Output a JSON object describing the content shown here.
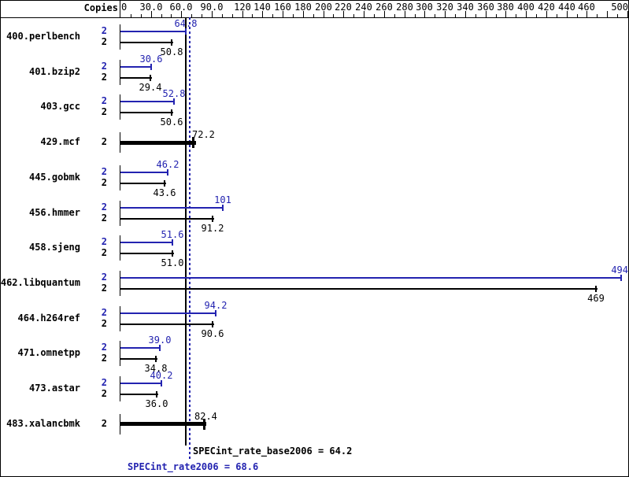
{
  "window": {
    "background": "#ffffff",
    "border_color": "#000000"
  },
  "header": {
    "copies_label": "Copies"
  },
  "palette": {
    "peak_blue": "#2323b0",
    "base_black": "#000000"
  },
  "chart_data": {
    "type": "bar",
    "orientation": "horizontal",
    "title": "",
    "xlabel": "",
    "ylabel": "",
    "axis": {
      "xlim": [
        0,
        500
      ],
      "minor_tick_step": 10,
      "ticks": [
        {
          "value": 0,
          "label": "0"
        },
        {
          "value": 30,
          "label": "30.0"
        },
        {
          "value": 60,
          "label": "60.0"
        },
        {
          "value": 90,
          "label": "90.0"
        },
        {
          "value": 120,
          "label": "120"
        },
        {
          "value": 140,
          "label": "140"
        },
        {
          "value": 160,
          "label": "160"
        },
        {
          "value": 180,
          "label": "180"
        },
        {
          "value": 200,
          "label": "200"
        },
        {
          "value": 220,
          "label": "220"
        },
        {
          "value": 240,
          "label": "240"
        },
        {
          "value": 260,
          "label": "260"
        },
        {
          "value": 280,
          "label": "280"
        },
        {
          "value": 300,
          "label": "300"
        },
        {
          "value": 320,
          "label": "320"
        },
        {
          "value": 340,
          "label": "340"
        },
        {
          "value": 360,
          "label": "360"
        },
        {
          "value": 380,
          "label": "380"
        },
        {
          "value": 400,
          "label": "400"
        },
        {
          "value": 420,
          "label": "420"
        },
        {
          "value": 440,
          "label": "440"
        },
        {
          "value": 460,
          "label": "460"
        },
        {
          "value": 480,
          "label": ""
        },
        {
          "value": 500,
          "label": "500"
        }
      ]
    },
    "legend": {
      "peak_series": "SPECint_rate2006 (peak, blue)",
      "base_series": "SPECint_rate_base2006 (base, black)"
    },
    "benchmarks": [
      {
        "name": "400.perlbench",
        "copies": "2",
        "peak": {
          "value": 64.8,
          "label": "64.8"
        },
        "base": {
          "value": 50.8,
          "label": "50.8"
        },
        "single": null
      },
      {
        "name": "401.bzip2",
        "copies": "2",
        "peak": {
          "value": 30.6,
          "label": "30.6"
        },
        "base": {
          "value": 29.4,
          "label": "29.4"
        },
        "single": null
      },
      {
        "name": "403.gcc",
        "copies": "2",
        "peak": {
          "value": 52.8,
          "label": "52.8"
        },
        "base": {
          "value": 50.6,
          "label": "50.6"
        },
        "single": null
      },
      {
        "name": "429.mcf",
        "copies": "2",
        "peak": null,
        "base": null,
        "single": {
          "value": 72.2,
          "label": "72.2"
        }
      },
      {
        "name": "445.gobmk",
        "copies": "2",
        "peak": {
          "value": 46.2,
          "label": "46.2"
        },
        "base": {
          "value": 43.6,
          "label": "43.6"
        },
        "single": null
      },
      {
        "name": "456.hmmer",
        "copies": "2",
        "peak": {
          "value": 101,
          "label": "101"
        },
        "base": {
          "value": 91.2,
          "label": "91.2"
        },
        "single": null
      },
      {
        "name": "458.sjeng",
        "copies": "2",
        "peak": {
          "value": 51.6,
          "label": "51.6"
        },
        "base": {
          "value": 51.0,
          "label": "51.0"
        },
        "single": null
      },
      {
        "name": "462.libquantum",
        "copies": "2",
        "peak": {
          "value": 494,
          "label": "494"
        },
        "base": {
          "value": 469,
          "label": "469"
        },
        "single": null
      },
      {
        "name": "464.h264ref",
        "copies": "2",
        "peak": {
          "value": 94.2,
          "label": "94.2"
        },
        "base": {
          "value": 90.6,
          "label": "90.6"
        },
        "single": null
      },
      {
        "name": "471.omnetpp",
        "copies": "2",
        "peak": {
          "value": 39.0,
          "label": "39.0"
        },
        "base": {
          "value": 34.8,
          "label": "34.8"
        },
        "single": null
      },
      {
        "name": "473.astar",
        "copies": "2",
        "peak": {
          "value": 40.2,
          "label": "40.2"
        },
        "base": {
          "value": 36.0,
          "label": "36.0"
        },
        "single": null
      },
      {
        "name": "483.xalancbmk",
        "copies": "2",
        "peak": null,
        "base": null,
        "single": {
          "value": 82.4,
          "label": "82.4"
        }
      }
    ],
    "reference_lines": [
      {
        "id": "base",
        "label": "SPECint_rate_base2006 = 64.2",
        "value": 64.2,
        "line_style": "solid",
        "color": "#000000"
      },
      {
        "id": "peak",
        "label": "SPECint_rate2006 = 68.6",
        "value": 68.6,
        "line_style": "dotted",
        "color": "#2323b0"
      }
    ]
  }
}
